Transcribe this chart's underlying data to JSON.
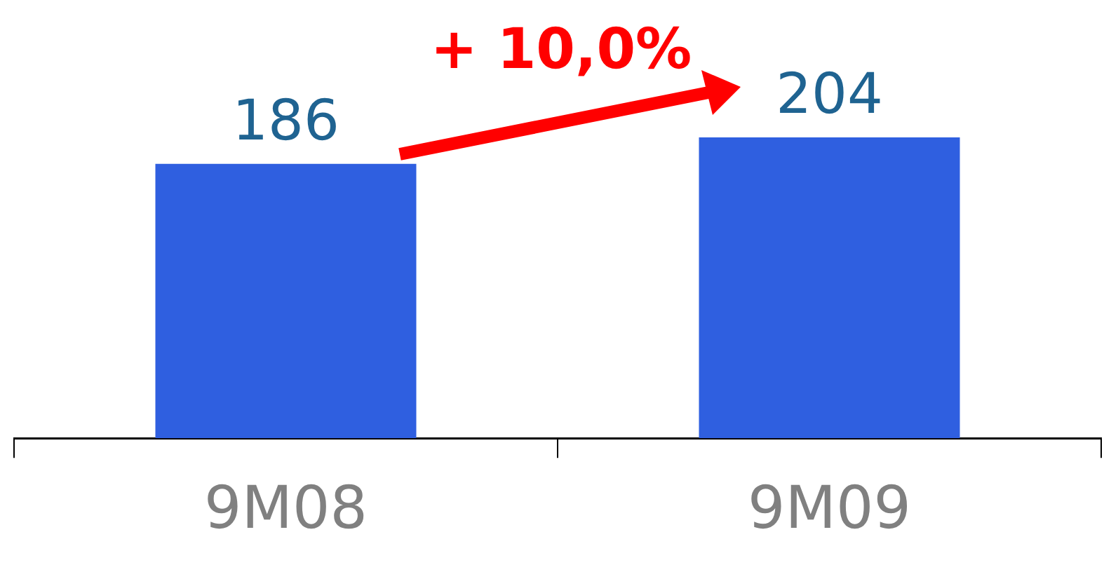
{
  "chart_data": {
    "type": "bar",
    "categories": [
      "9M08",
      "9M09"
    ],
    "values": [
      186,
      204
    ],
    "color": "#2f5fe0",
    "tick_labels": "x",
    "data_labels": true,
    "legend": false,
    "annotations": [
      "+ 10,0%"
    ]
  }
}
